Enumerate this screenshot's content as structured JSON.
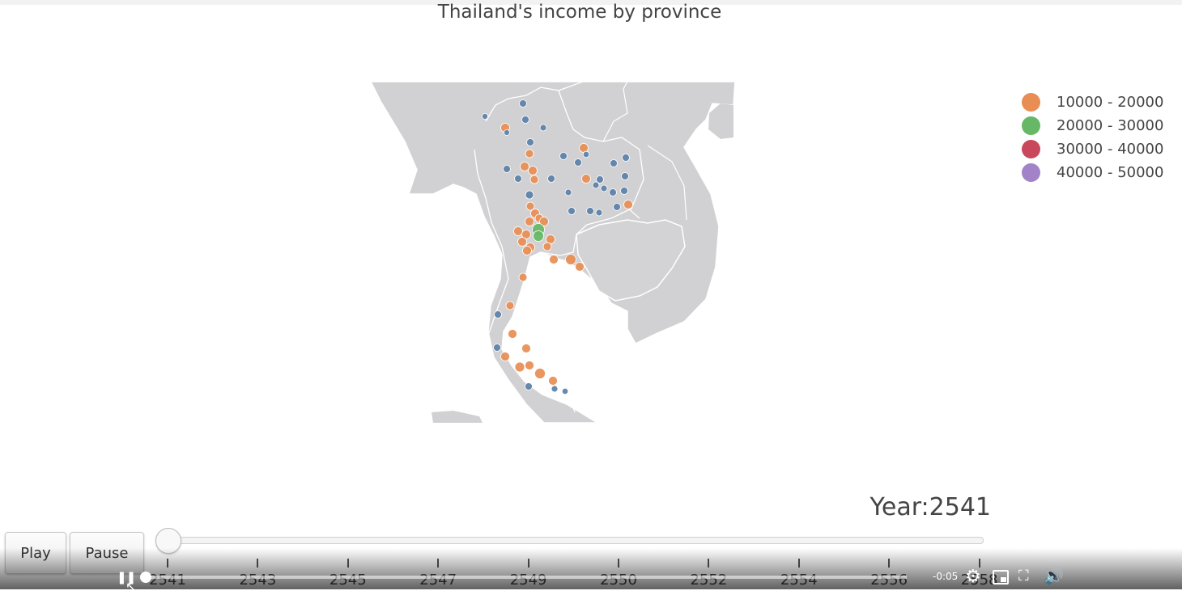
{
  "title": "Thailand's income by province",
  "legend": [
    {
      "label": "10000 - 20000",
      "color": "#e88d54"
    },
    {
      "label": "20000 - 30000",
      "color": "#66b766"
    },
    {
      "label": "30000 - 40000",
      "color": "#c9475b"
    },
    {
      "label": "40000 - 50000",
      "color": "#a383c8"
    }
  ],
  "below_range_color": "#5b80a8",
  "year_label": "Year:2541",
  "buttons": {
    "play": "Play",
    "pause": "Pause"
  },
  "slider": {
    "ticks": [
      "2541",
      "2543",
      "2545",
      "2547",
      "2549",
      "2550",
      "2552",
      "2554",
      "2556",
      "2558"
    ],
    "current_index": 0
  },
  "video": {
    "time_remaining": "-0:05",
    "progress_fraction": 0.0,
    "pause_icon": "pause-icon",
    "settings_icon": "gear-icon",
    "pip_icon": "picture-in-picture-icon",
    "fullscreen_icon": "fullscreen-icon",
    "volume_icon": "volume-icon"
  }
}
